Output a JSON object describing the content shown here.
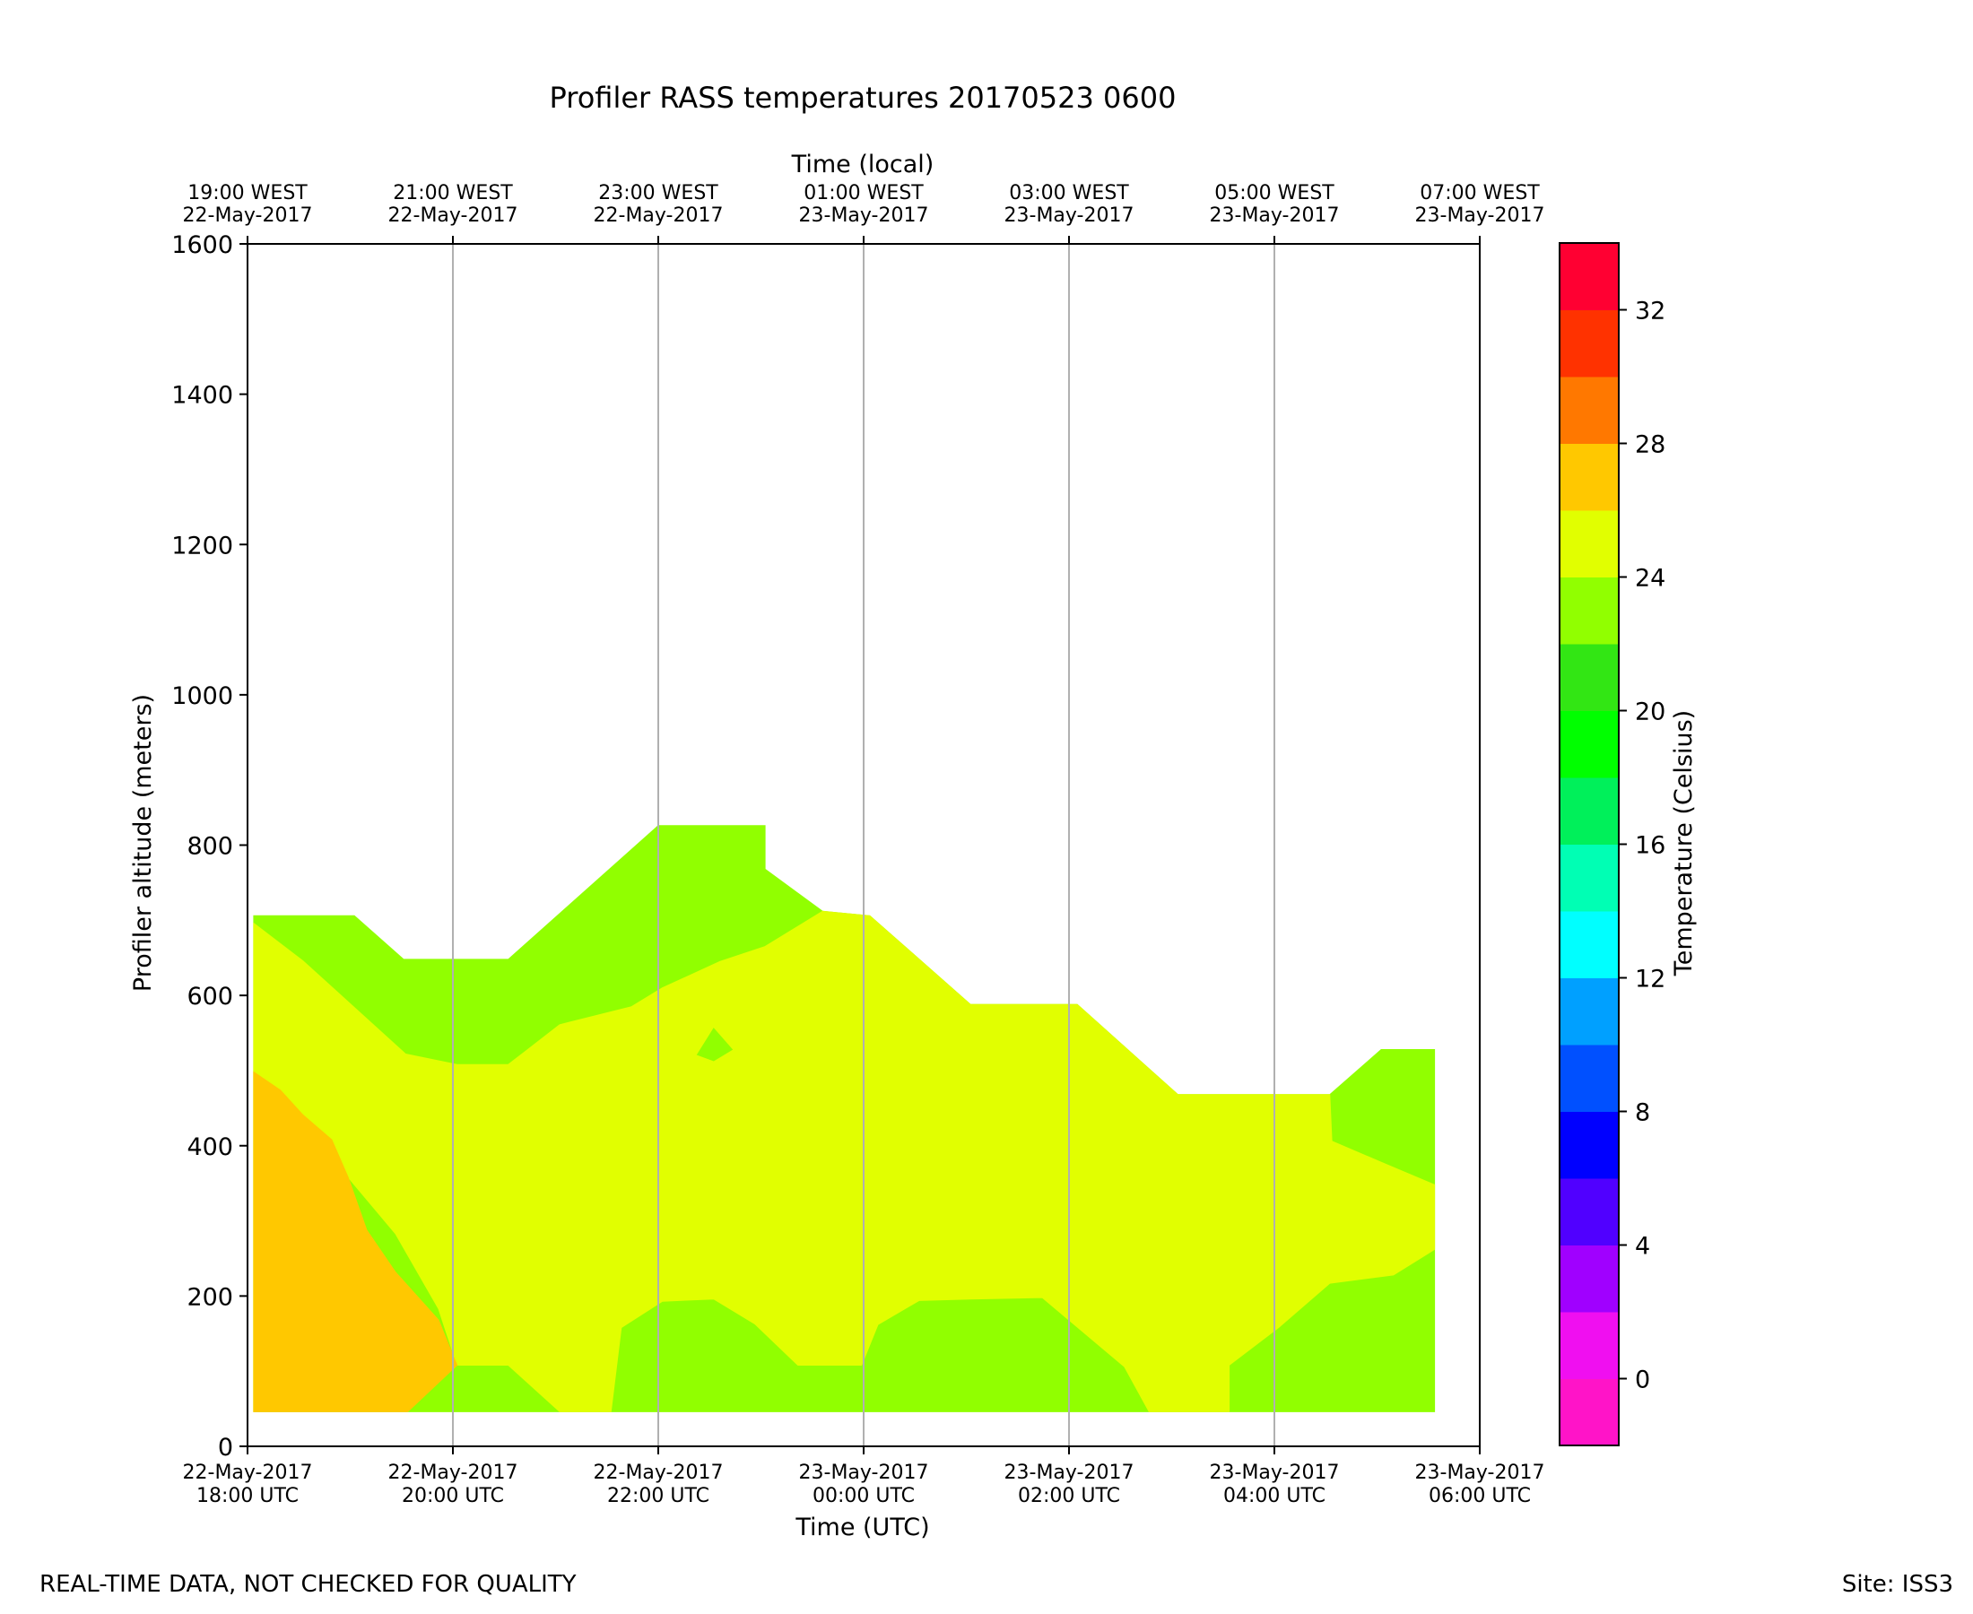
{
  "chart_data": {
    "type": "filled-contour",
    "title": "Profiler RASS temperatures 20170523 0600",
    "xlabel_bottom": "Time (UTC)",
    "xlabel_top": "Time (local)",
    "ylabel": "Profiler altitude (meters)",
    "ylim": [
      0,
      1600
    ],
    "yticks": [
      0,
      200,
      400,
      600,
      800,
      1000,
      1200,
      1400,
      1600
    ],
    "xlim_hours_since_18utc": [
      0,
      12
    ],
    "bottom_ticks": [
      {
        "line1": "22-May-2017",
        "line2": "18:00 UTC",
        "hour": 0
      },
      {
        "line1": "22-May-2017",
        "line2": "20:00 UTC",
        "hour": 2
      },
      {
        "line1": "22-May-2017",
        "line2": "22:00 UTC",
        "hour": 4
      },
      {
        "line1": "23-May-2017",
        "line2": "00:00 UTC",
        "hour": 6
      },
      {
        "line1": "23-May-2017",
        "line2": "02:00 UTC",
        "hour": 8
      },
      {
        "line1": "23-May-2017",
        "line2": "04:00 UTC",
        "hour": 10
      },
      {
        "line1": "23-May-2017",
        "line2": "06:00 UTC",
        "hour": 12
      }
    ],
    "top_ticks": [
      {
        "line1": "19:00 WEST",
        "line2": "22-May-2017",
        "hour": 0
      },
      {
        "line1": "21:00 WEST",
        "line2": "22-May-2017",
        "hour": 2
      },
      {
        "line1": "23:00 WEST",
        "line2": "22-May-2017",
        "hour": 4
      },
      {
        "line1": "01:00 WEST",
        "line2": "23-May-2017",
        "hour": 6
      },
      {
        "line1": "03:00 WEST",
        "line2": "23-May-2017",
        "hour": 8
      },
      {
        "line1": "05:00 WEST",
        "line2": "23-May-2017",
        "hour": 10
      },
      {
        "line1": "07:00 WEST",
        "line2": "23-May-2017",
        "hour": 12
      }
    ],
    "gridlines_hours": [
      2,
      4,
      6,
      8,
      10
    ],
    "regions": [
      {
        "name": "band-22-24",
        "color": "#91ff00",
        "points": [
          [
            0.06,
            706
          ],
          [
            1.04,
            706
          ],
          [
            1.52,
            648
          ],
          [
            2.54,
            648
          ],
          [
            4.0,
            826
          ],
          [
            5.04,
            826
          ],
          [
            5.04,
            768
          ],
          [
            5.6,
            712
          ],
          [
            6.06,
            706
          ],
          [
            7.04,
            588
          ],
          [
            8.08,
            588
          ],
          [
            9.06,
            468
          ],
          [
            10.54,
            468
          ],
          [
            11.04,
            528
          ],
          [
            11.56,
            528
          ],
          [
            11.56,
            46
          ],
          [
            0.06,
            46
          ]
        ]
      },
      {
        "name": "band-24-26",
        "color": "#e1ff00",
        "points": [
          [
            0.06,
            696
          ],
          [
            0.54,
            646
          ],
          [
            1.54,
            522
          ],
          [
            2.04,
            508
          ],
          [
            2.54,
            508
          ],
          [
            2.7,
            525
          ],
          [
            3.04,
            561
          ],
          [
            3.74,
            585
          ],
          [
            4.04,
            610
          ],
          [
            4.6,
            645
          ],
          [
            5.04,
            665
          ],
          [
            5.6,
            712
          ],
          [
            6.06,
            706
          ],
          [
            7.04,
            588
          ],
          [
            8.08,
            588
          ],
          [
            9.06,
            468
          ],
          [
            10.54,
            468
          ],
          [
            10.56,
            406
          ],
          [
            11.04,
            378
          ],
          [
            11.56,
            348
          ],
          [
            11.56,
            262
          ],
          [
            11.16,
            228
          ],
          [
            10.54,
            217
          ],
          [
            10.04,
            158
          ],
          [
            9.56,
            108
          ],
          [
            9.56,
            46
          ],
          [
            8.78,
            46
          ],
          [
            8.54,
            106
          ],
          [
            7.74,
            198
          ],
          [
            7.04,
            196
          ],
          [
            6.54,
            194
          ],
          [
            6.14,
            162
          ],
          [
            5.98,
            108
          ],
          [
            5.36,
            108
          ],
          [
            4.94,
            163
          ],
          [
            4.54,
            196
          ],
          [
            4.04,
            193
          ],
          [
            3.64,
            158
          ],
          [
            3.54,
            46
          ],
          [
            3.04,
            46
          ],
          [
            2.54,
            108
          ],
          [
            2.04,
            108
          ],
          [
            1.86,
            183
          ],
          [
            1.44,
            283
          ],
          [
            0.98,
            358
          ],
          [
            0.06,
            46
          ]
        ]
      },
      {
        "name": "band-26-28",
        "color": "#ffc800",
        "points": [
          [
            0.06,
            498
          ],
          [
            0.32,
            474
          ],
          [
            0.54,
            441
          ],
          [
            0.82,
            408
          ],
          [
            0.98,
            358
          ],
          [
            1.16,
            288
          ],
          [
            1.44,
            232
          ],
          [
            1.86,
            168
          ],
          [
            2.04,
            108
          ],
          [
            1.56,
            46
          ],
          [
            0.06,
            46
          ]
        ]
      },
      {
        "name": "island-22-24",
        "color": "#91ff00",
        "points": [
          [
            4.38,
            521
          ],
          [
            4.54,
            556
          ],
          [
            4.72,
            528
          ],
          [
            4.54,
            513
          ]
        ]
      }
    ],
    "colorbar": {
      "label": "Temperature (Celsius)",
      "range": [
        -2,
        34
      ],
      "ticks": [
        0,
        4,
        8,
        12,
        16,
        20,
        24,
        28,
        32
      ],
      "bands": [
        {
          "from": -2,
          "to": 0,
          "color": "#ff14c8"
        },
        {
          "from": 0,
          "to": 2,
          "color": "#f00ff0"
        },
        {
          "from": 2,
          "to": 4,
          "color": "#a000ff"
        },
        {
          "from": 4,
          "to": 6,
          "color": "#5000ff"
        },
        {
          "from": 6,
          "to": 8,
          "color": "#0000ff"
        },
        {
          "from": 8,
          "to": 10,
          "color": "#0050ff"
        },
        {
          "from": 10,
          "to": 12,
          "color": "#00a0ff"
        },
        {
          "from": 12,
          "to": 14,
          "color": "#00ffff"
        },
        {
          "from": 14,
          "to": 16,
          "color": "#00ffb4"
        },
        {
          "from": 16,
          "to": 18,
          "color": "#00f05a"
        },
        {
          "from": 18,
          "to": 20,
          "color": "#00ff00"
        },
        {
          "from": 20,
          "to": 22,
          "color": "#32e614"
        },
        {
          "from": 22,
          "to": 24,
          "color": "#91ff00"
        },
        {
          "from": 24,
          "to": 26,
          "color": "#e1ff00"
        },
        {
          "from": 26,
          "to": 28,
          "color": "#ffc800"
        },
        {
          "from": 28,
          "to": 30,
          "color": "#ff7800"
        },
        {
          "from": 30,
          "to": 32,
          "color": "#ff3200"
        },
        {
          "from": 32,
          "to": 34,
          "color": "#ff0032"
        }
      ]
    }
  },
  "footer": {
    "left": "REAL-TIME DATA, NOT CHECKED FOR QUALITY",
    "right": "Site: ISS3"
  }
}
